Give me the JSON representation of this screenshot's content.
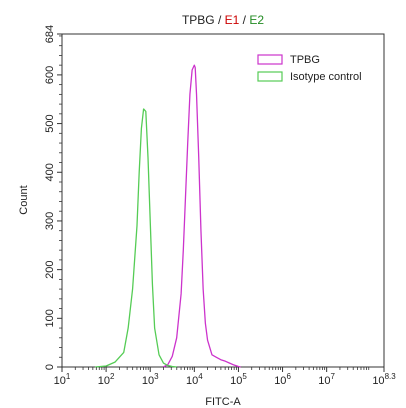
{
  "title_parts": [
    {
      "text": "TPBG",
      "color": "#222222"
    },
    {
      "text": " / ",
      "color": "#222222"
    },
    {
      "text": "E1",
      "color": "#cc0000"
    },
    {
      "text": " / ",
      "color": "#222222"
    },
    {
      "text": "E2",
      "color": "#228b22"
    }
  ],
  "chart_data": {
    "type": "line",
    "title": "TPBG / E1 / E2",
    "xlabel": "FITC-A",
    "ylabel": "Count",
    "xscale": "log",
    "xlim": [
      1,
      8.3
    ],
    "ylim": [
      0,
      684
    ],
    "x_ticks": [
      {
        "value": 1,
        "base": "10",
        "exp": "1"
      },
      {
        "value": 2,
        "base": "10",
        "exp": "2"
      },
      {
        "value": 3,
        "base": "10",
        "exp": "3"
      },
      {
        "value": 4,
        "base": "10",
        "exp": "4"
      },
      {
        "value": 5,
        "base": "10",
        "exp": "5"
      },
      {
        "value": 6,
        "base": "10",
        "exp": "6"
      },
      {
        "value": 7,
        "base": "10",
        "exp": "7"
      },
      {
        "value": 8.3,
        "base": "10",
        "exp": "8.3"
      }
    ],
    "y_ticks": [
      0,
      100,
      200,
      300,
      400,
      500,
      600,
      684
    ],
    "legend_position": "top-right",
    "series": [
      {
        "name": "TPBG",
        "color": "#cc33cc",
        "x": [
          3.3,
          3.4,
          3.5,
          3.6,
          3.7,
          3.75,
          3.8,
          3.85,
          3.9,
          3.95,
          4.0,
          4.02,
          4.05,
          4.1,
          4.15,
          4.2,
          4.25,
          4.3,
          4.4,
          4.5,
          4.6,
          4.7,
          4.8,
          4.9,
          5.0,
          5.05
        ],
        "y": [
          0,
          5,
          22,
          60,
          150,
          240,
          350,
          460,
          560,
          610,
          620,
          615,
          560,
          430,
          280,
          160,
          90,
          55,
          25,
          20,
          15,
          12,
          8,
          4,
          1,
          0
        ]
      },
      {
        "name": "Isotype control",
        "color": "#55cc55",
        "x": [
          1.75,
          2.0,
          2.2,
          2.4,
          2.5,
          2.6,
          2.7,
          2.75,
          2.8,
          2.85,
          2.9,
          2.95,
          3.0,
          3.05,
          3.1,
          3.2,
          3.3,
          3.4,
          3.5,
          3.6
        ],
        "y": [
          0,
          2,
          10,
          30,
          80,
          160,
          290,
          400,
          490,
          530,
          525,
          430,
          300,
          170,
          80,
          25,
          8,
          3,
          1,
          0
        ]
      }
    ]
  }
}
